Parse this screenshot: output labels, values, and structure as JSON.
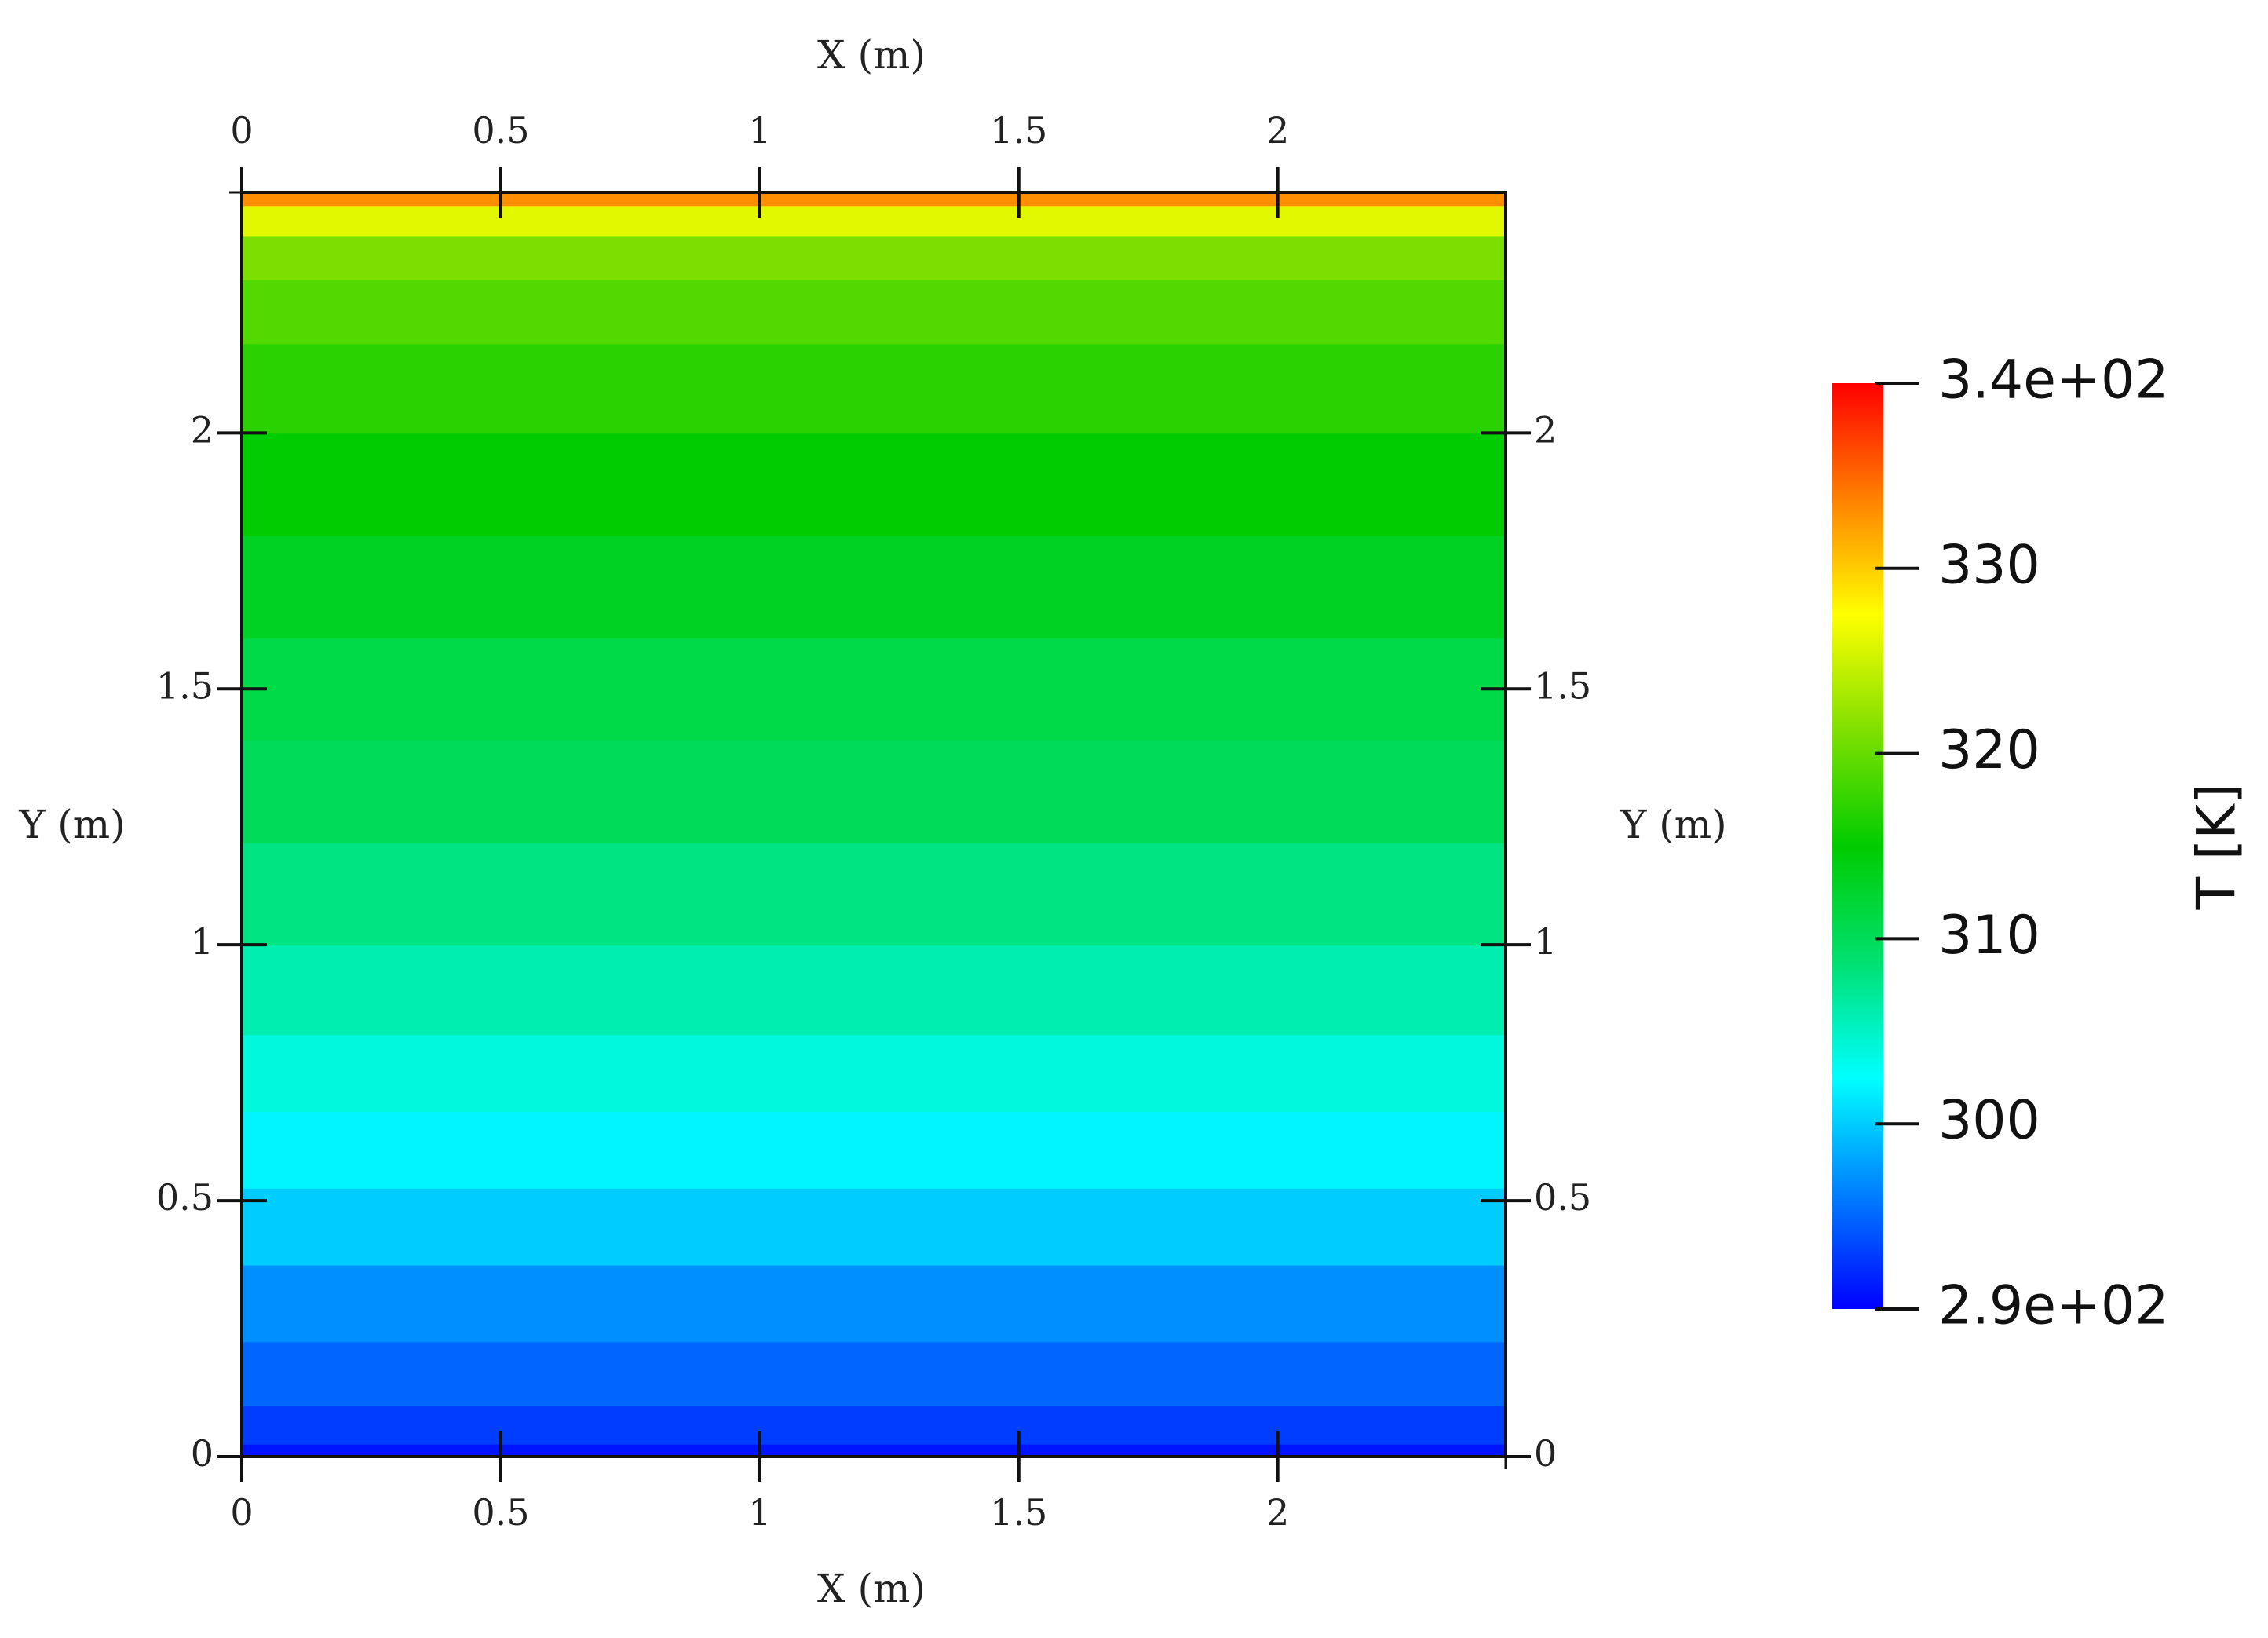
{
  "chart_data": {
    "type": "contour",
    "x_label": "X (m)",
    "y_label": "Y (m)",
    "colorbar_label": "T [K]",
    "xlim": [
      0,
      2.44
    ],
    "ylim": [
      0,
      2.47
    ],
    "xticks": [
      0,
      0.5,
      1,
      1.5,
      2
    ],
    "yticks": [
      0,
      0.5,
      1,
      1.5,
      2
    ],
    "clim": [
      290,
      340
    ],
    "cticks": [
      {
        "value": 290,
        "label": "2.9e+02"
      },
      300,
      310,
      320,
      330,
      {
        "value": 340,
        "label": "3.4e+02"
      }
    ],
    "colormap": [
      "#0000ff",
      "#0080ff",
      "#00ffff",
      "#00e070",
      "#00cc00",
      "#80e000",
      "#ffff00",
      "#ff8000",
      "#ff0000"
    ],
    "y": [
      0,
      0.05,
      0.15,
      0.3,
      0.45,
      0.6,
      0.75,
      0.9,
      1.1,
      1.3,
      1.5,
      1.7,
      1.9,
      2.1,
      2.25,
      2.35,
      2.42,
      2.47
    ],
    "values": [
      291,
      293,
      295,
      297,
      300,
      302,
      304,
      306,
      308,
      310,
      311,
      313,
      315,
      317,
      319,
      321,
      326,
      333
    ]
  }
}
